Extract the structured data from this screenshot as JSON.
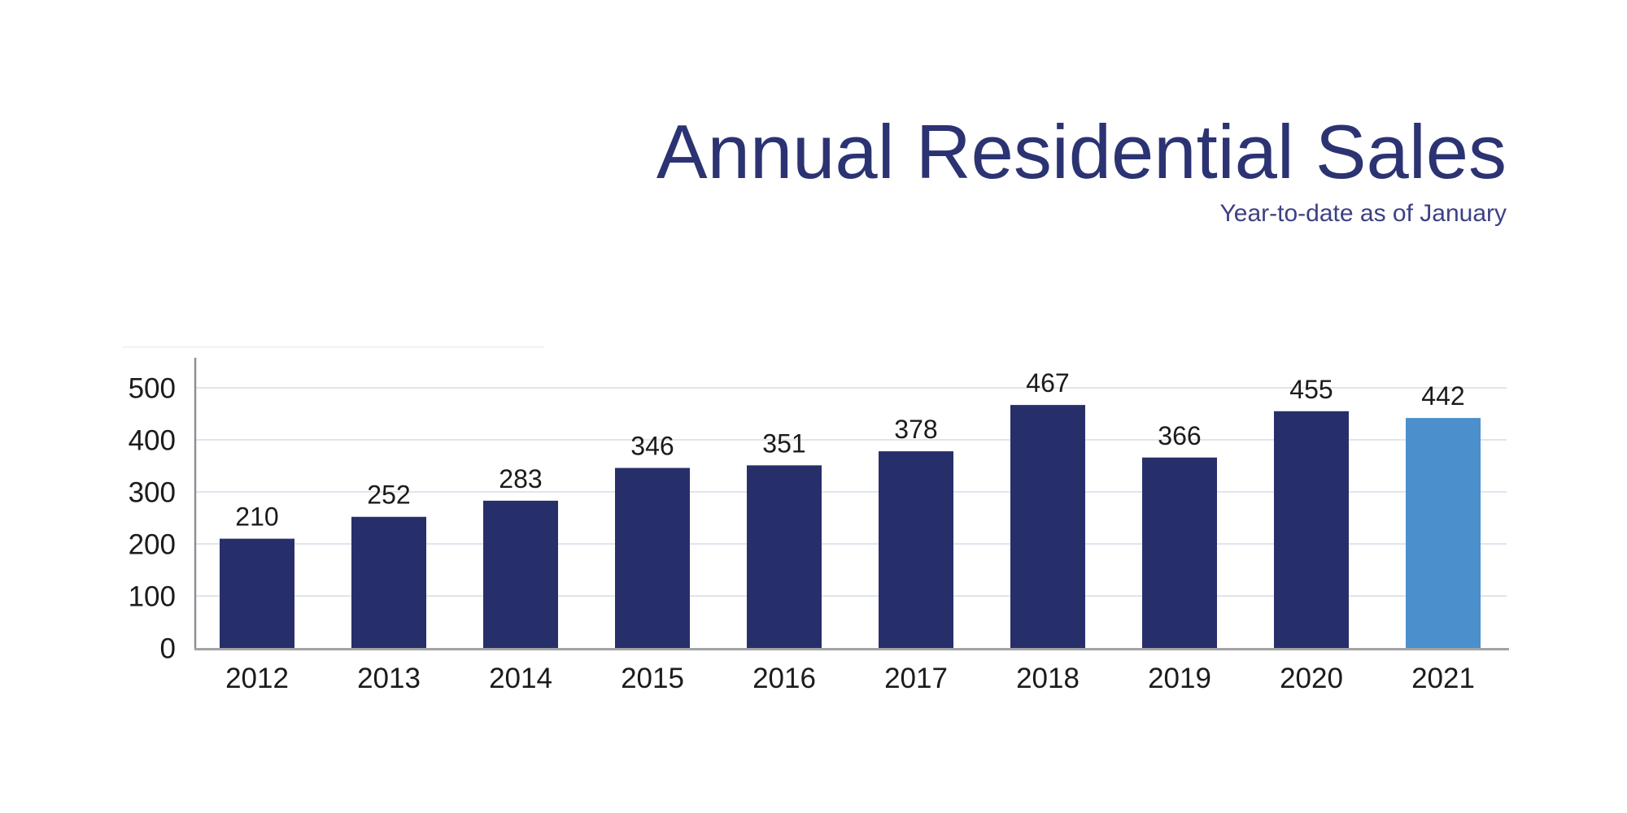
{
  "header": {
    "title": "Annual Residential Sales",
    "subtitle": "Year-to-date as of January",
    "title_color": "#2c3372",
    "subtitle_color": "#3c4183"
  },
  "chart_data": {
    "type": "bar",
    "title": "Annual Residential Sales",
    "subtitle": "Year-to-date as of January",
    "categories": [
      "2012",
      "2013",
      "2014",
      "2015",
      "2016",
      "2017",
      "2018",
      "2019",
      "2020",
      "2021"
    ],
    "values": [
      210,
      252,
      283,
      346,
      351,
      378,
      467,
      366,
      455,
      442
    ],
    "highlight_index": 9,
    "xlabel": "",
    "ylabel": "",
    "ylim": [
      0,
      550
    ],
    "yticks": [
      0,
      100,
      200,
      300,
      400,
      500
    ],
    "grid": "horizontal",
    "legend": "none",
    "value_labels_shown": true,
    "colors": {
      "bar": "#272f6b",
      "bar_highlight": "#4b90cd",
      "gridline": "#dfe5ee",
      "y_axis": "#8f8f94",
      "x_axis": "#a3a3a6",
      "value_label": "#1b1b1b",
      "tick_label": "#1b1b1b",
      "background": "#ffffff"
    }
  }
}
